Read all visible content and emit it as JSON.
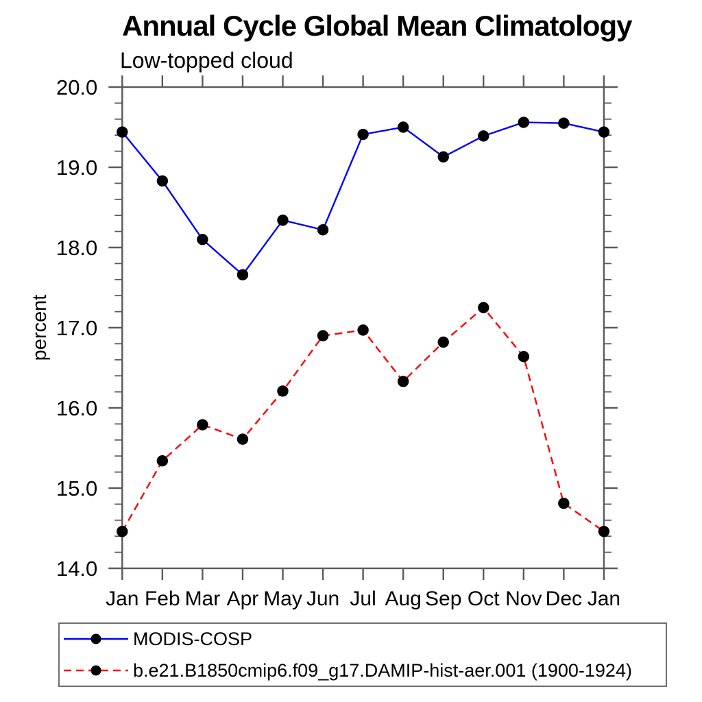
{
  "chart_data": {
    "type": "line",
    "title": "Annual Cycle Global Mean Climatology",
    "subtitle": "Low-topped cloud",
    "ylabel": "percent",
    "xlabel": "",
    "categories": [
      "Jan",
      "Feb",
      "Mar",
      "Apr",
      "May",
      "Jun",
      "Jul",
      "Aug",
      "Sep",
      "Oct",
      "Nov",
      "Dec",
      "Jan"
    ],
    "ylim": [
      14.0,
      20.0
    ],
    "ytick_major_step": 1.0,
    "ytick_minor_step": 0.2,
    "ytick_labels": [
      "14.0",
      "15.0",
      "16.0",
      "17.0",
      "18.0",
      "19.0",
      "20.0"
    ],
    "grid": false,
    "legend_position": "bottom-left",
    "series": [
      {
        "name": "MODIS-COSP",
        "line_color": "#0000ff",
        "line_style": "solid",
        "marker": "circle",
        "marker_color": "#000000",
        "values": [
          19.44,
          18.83,
          18.1,
          17.66,
          18.34,
          18.22,
          19.41,
          19.5,
          19.13,
          19.39,
          19.56,
          19.55,
          19.44
        ]
      },
      {
        "name": "b.e21.B1850cmip6.f09_g17.DAMIP-hist-aer.001 (1900-1924)",
        "line_color": "#ff0000",
        "line_style": "dashed",
        "marker": "circle",
        "marker_color": "#000000",
        "values": [
          14.46,
          15.34,
          15.79,
          15.61,
          16.21,
          16.9,
          16.97,
          16.33,
          16.82,
          17.25,
          16.64,
          14.81,
          14.46
        ]
      }
    ]
  },
  "colors": {
    "axis": "#5a5a5a",
    "text": "#000000",
    "background": "#ffffff",
    "series_blue": "#0000ff",
    "series_red": "#ff0000",
    "marker": "#000000"
  }
}
